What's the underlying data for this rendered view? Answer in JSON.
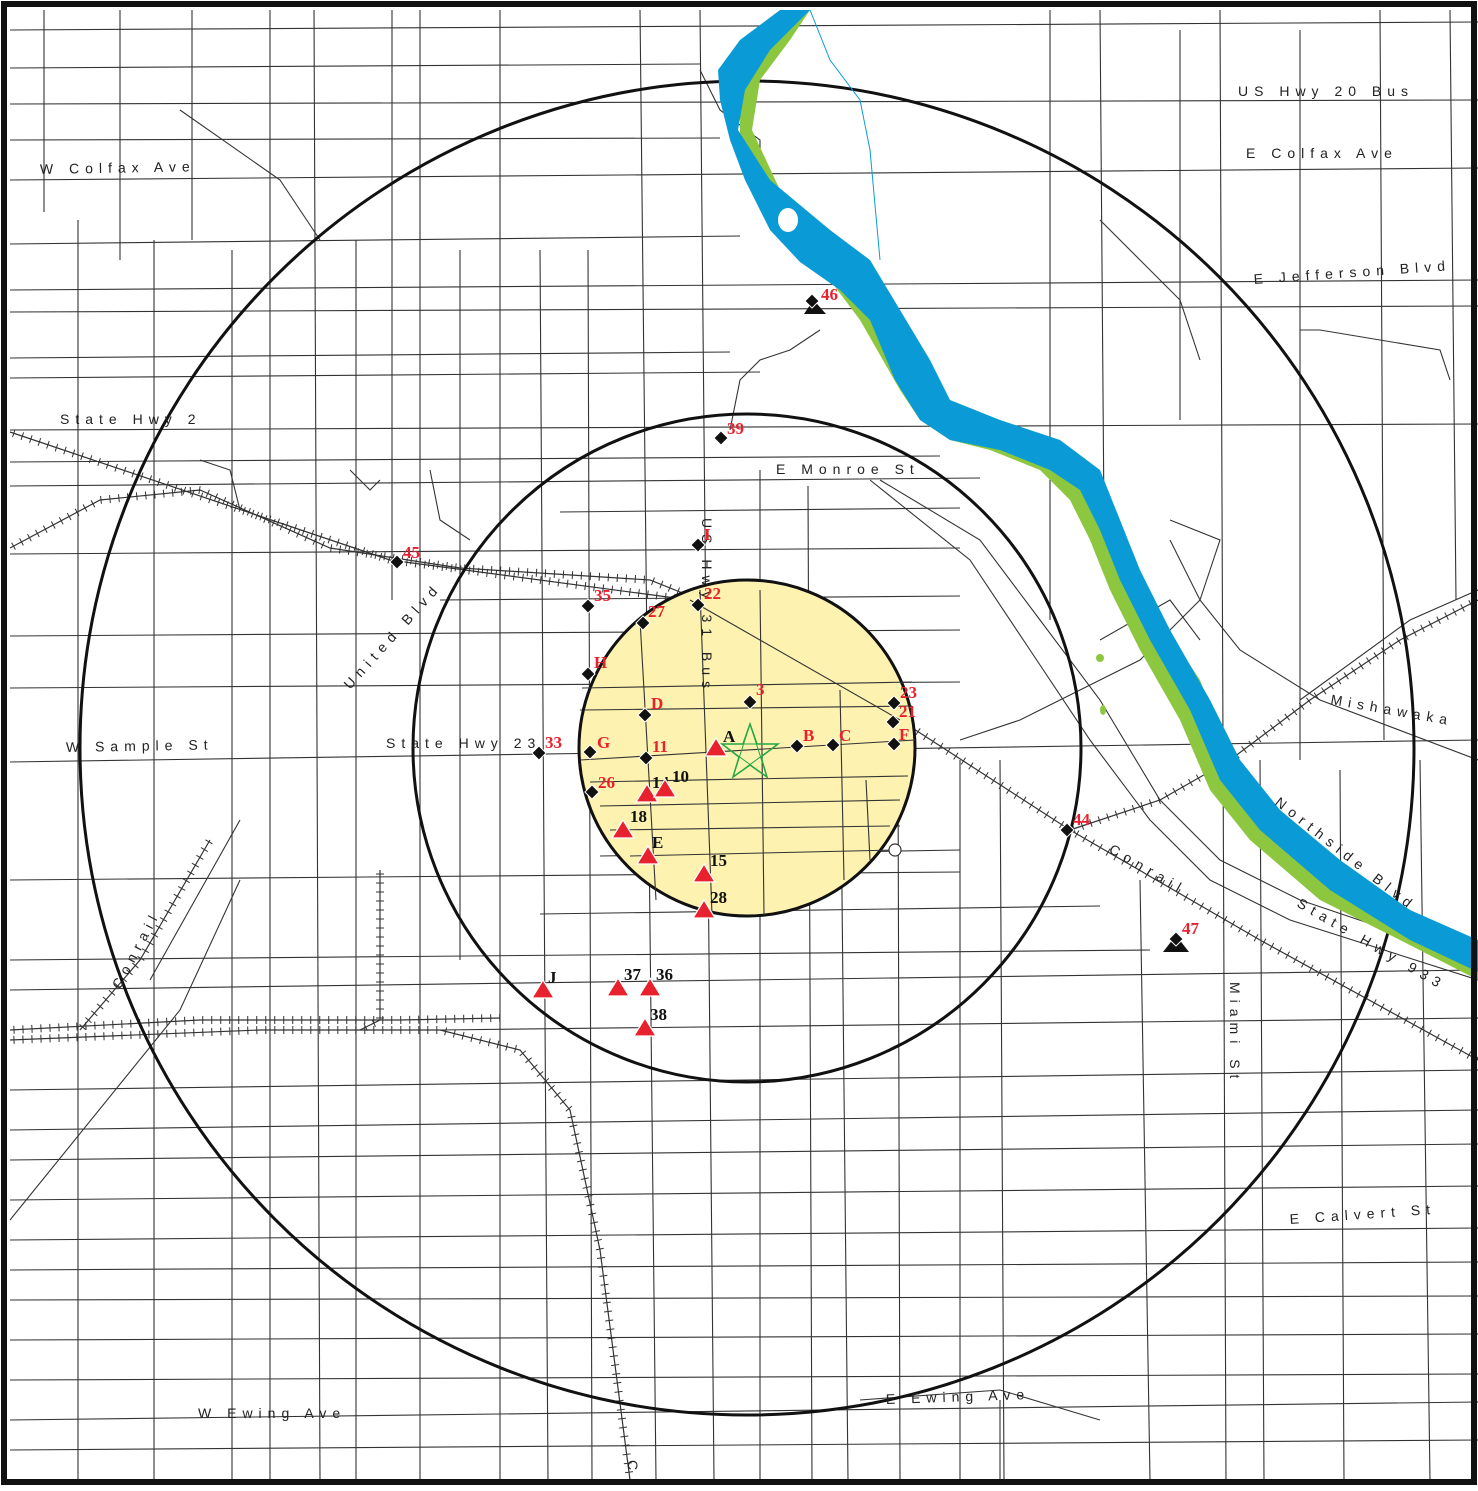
{
  "colors": {
    "river": "#0a9bd7",
    "riverbank": "#8dc63f",
    "inner_zone": "#fdf2b0",
    "triangle": "#e8212e",
    "red_label": "#e8212e",
    "diamond": "#111111",
    "star": "#22a845",
    "ring": "#111111"
  },
  "streets": [
    "US Hwy 20 Bus",
    "E Colfax Ave",
    "W Colfax Ave",
    "E Jefferson Blvd",
    "State Hwy 2",
    "E Monroe St",
    "US Hwy 31 Bus",
    "United Blvd",
    "W Sample St",
    "State Hwy 23",
    "Mishawaka",
    "Northside Blvd",
    "Conrail",
    "State Hwy 933",
    "Miami St",
    "E Calvert St",
    "E Ewing Ave",
    "W Ewing Ave",
    "Conrail",
    "C"
  ],
  "markers": {
    "triangles": [
      {
        "label": "A",
        "label_color": "black"
      },
      {
        "label": "14",
        "label_color": "black"
      },
      {
        "label": "10",
        "label_color": "black"
      },
      {
        "label": "18",
        "label_color": "black"
      },
      {
        "label": "E",
        "label_color": "black"
      },
      {
        "label": "15",
        "label_color": "black"
      },
      {
        "label": "28",
        "label_color": "black"
      },
      {
        "label": "J",
        "label_color": "black"
      },
      {
        "label": "37",
        "label_color": "black"
      },
      {
        "label": "36",
        "label_color": "black"
      },
      {
        "label": "38",
        "label_color": "black"
      }
    ],
    "diamonds": [
      {
        "label": "46",
        "label_color": "red",
        "symbol": "pagoda"
      },
      {
        "label": "39",
        "label_color": "red"
      },
      {
        "label": "I",
        "label_color": "red"
      },
      {
        "label": "45",
        "label_color": "red"
      },
      {
        "label": "35",
        "label_color": "red"
      },
      {
        "label": "27",
        "label_color": "red"
      },
      {
        "label": "22",
        "label_color": "red"
      },
      {
        "label": "H",
        "label_color": "red"
      },
      {
        "label": "3",
        "label_color": "red"
      },
      {
        "label": "D",
        "label_color": "red"
      },
      {
        "label": "23",
        "label_color": "red"
      },
      {
        "label": "21",
        "label_color": "red"
      },
      {
        "label": "B",
        "label_color": "red"
      },
      {
        "label": "C",
        "label_color": "red"
      },
      {
        "label": "F",
        "label_color": "red"
      },
      {
        "label": "33",
        "label_color": "red"
      },
      {
        "label": "G",
        "label_color": "red"
      },
      {
        "label": "11",
        "label_color": "red"
      },
      {
        "label": "26",
        "label_color": "red"
      },
      {
        "label": "44",
        "label_color": "red"
      },
      {
        "label": "47",
        "label_color": "red",
        "symbol": "pagoda"
      }
    ],
    "center_symbol": "star-icon"
  }
}
